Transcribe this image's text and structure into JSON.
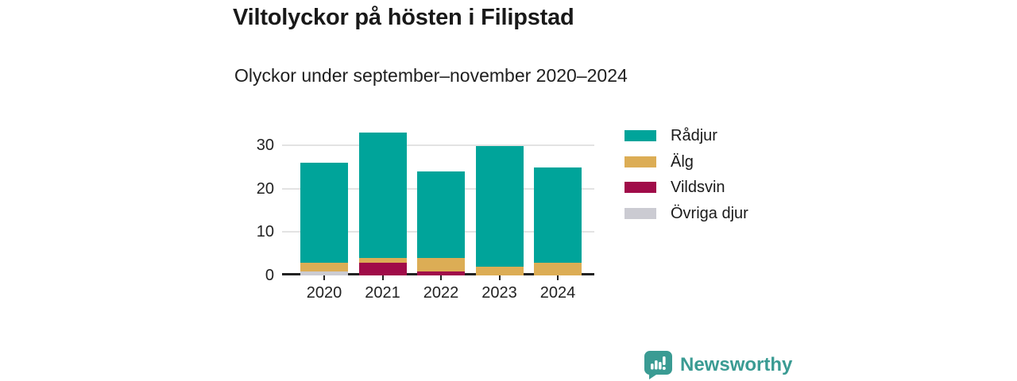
{
  "header": {
    "title": "Viltolyckor på hösten i Filipstad",
    "subtitle": "Olyckor under september–november 2020–2024"
  },
  "chart_data": {
    "type": "bar",
    "stacked": true,
    "title": "Viltolyckor på hösten i Filipstad",
    "subtitle": "Olyckor under september–november 2020–2024",
    "categories": [
      "2020",
      "2021",
      "2022",
      "2023",
      "2024"
    ],
    "series": [
      {
        "name": "Rådjur",
        "color": "#00a49a",
        "values": [
          23,
          29,
          20,
          28,
          22
        ]
      },
      {
        "name": "Älg",
        "color": "#dcad55",
        "values": [
          2,
          1,
          3,
          2,
          3
        ]
      },
      {
        "name": "Vildsvin",
        "color": "#a00c49",
        "values": [
          0,
          3,
          1,
          0,
          0
        ]
      },
      {
        "name": "Övriga djur",
        "color": "#cbcbd2",
        "values": [
          1,
          0,
          0,
          0,
          0
        ]
      }
    ],
    "totals": [
      26,
      33,
      24,
      30,
      25
    ],
    "xlabel": "",
    "ylabel": "",
    "ylim": [
      0,
      34
    ],
    "yticks": [
      0,
      10,
      20,
      30
    ],
    "grid": "horizontal",
    "legend_position": "right",
    "stack_order_bottom_to_top": [
      "Övriga djur",
      "Vildsvin",
      "Älg",
      "Rådjur"
    ]
  },
  "colors": {
    "axis": "#222222",
    "gridline": "#e3e3e3",
    "text": "#1a1a1a",
    "brand_teal": "#3a9b93"
  },
  "footer": {
    "brand": "Newsworthy"
  }
}
